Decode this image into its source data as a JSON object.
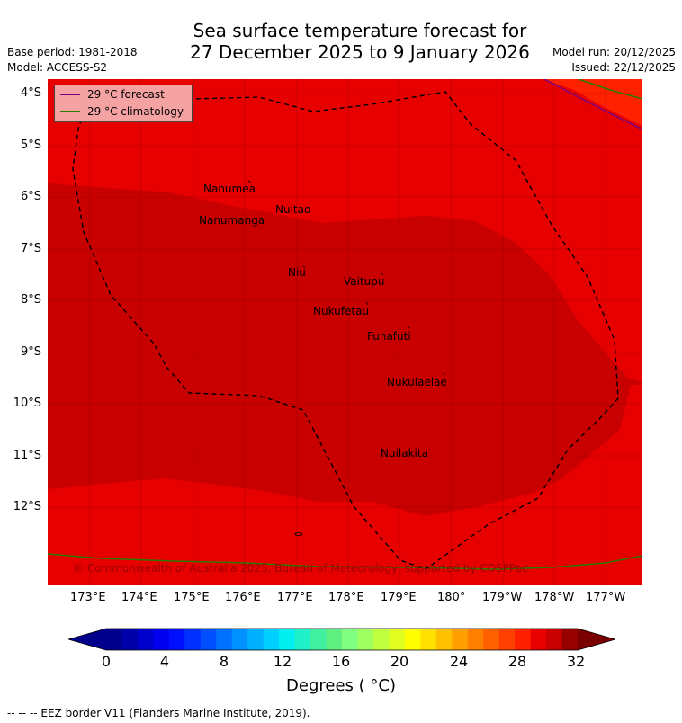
{
  "title_line1": "Sea surface temperature forecast for",
  "title_line2": "27 December 2025 to 9 January 2026",
  "base_period": "Base period: 1981-2018",
  "model": "Model: ACCESS-S2",
  "model_run": "Model run: 20/12/2025",
  "issued": "Issued: 22/12/2025",
  "legend": {
    "forecast_label": "29 °C  forecast",
    "climatology_label": "29 °C  climatology",
    "forecast_color": "#7b0080",
    "climatology_color": "#2a7a00"
  },
  "lat_labels": [
    "4°S",
    "5°S",
    "6°S",
    "7°S",
    "8°S",
    "9°S",
    "10°S",
    "11°S",
    "12°S"
  ],
  "lon_labels": [
    "173°E",
    "174°E",
    "175°E",
    "176°E",
    "177°E",
    "178°E",
    "179°E",
    "180°",
    "179°W",
    "178°W",
    "177°W"
  ],
  "places": [
    "Nanumea",
    "Nuitao",
    "Nanumanga",
    "Niu",
    "Vaitupu",
    "Nukufetau",
    "Funafuti",
    "Nukulaelae",
    "Nuilakita"
  ],
  "copyright": "© Commonwealth of Australia 2025, Bureau of Meteorology; supported by COSPPac",
  "colorbar": {
    "tick_labels": [
      "0",
      "4",
      "8",
      "12",
      "16",
      "20",
      "24",
      "28",
      "32"
    ],
    "title": "Degrees ( °C)",
    "colors": [
      "#00008b",
      "#0000a8",
      "#0000cc",
      "#0000ee",
      "#0010ff",
      "#0030ff",
      "#0050ff",
      "#0070ff",
      "#0090ff",
      "#00b0ff",
      "#00d0ff",
      "#00f0f0",
      "#20f0c8",
      "#40f0a0",
      "#60f080",
      "#80ff80",
      "#a0ff60",
      "#c0ff40",
      "#e0ff20",
      "#ffff00",
      "#ffe000",
      "#ffc000",
      "#ffa000",
      "#ff8000",
      "#ff6000",
      "#ff4000",
      "#ff2000",
      "#e80000",
      "#c80000",
      "#980000"
    ],
    "below_color": "#00008b",
    "above_color": "#7a0000"
  },
  "map_colors": {
    "band_29_30": "#e60000",
    "band_30_31": "#c80000",
    "band_28_29": "#ff2200"
  },
  "footer": "--  --  -- EEZ border V11 (Flanders Marine Institute, 2019)."
}
